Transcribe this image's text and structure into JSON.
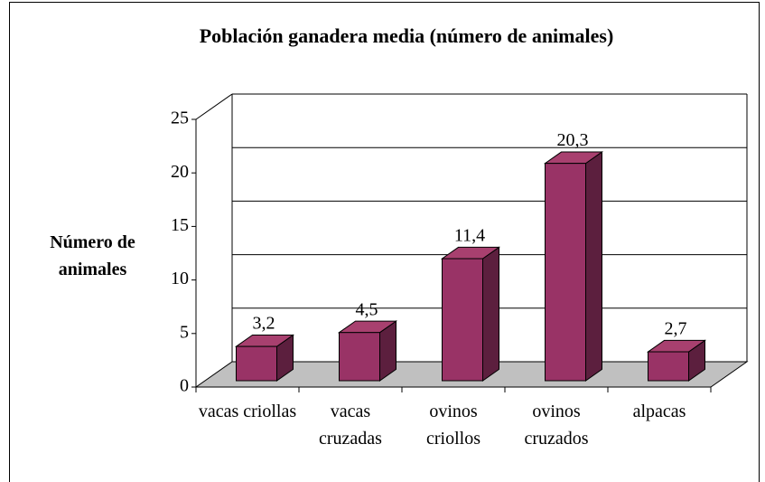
{
  "chart_data": {
    "type": "bar3d",
    "title": "Población ganadera media (número de animales)",
    "y_label": "Número de animales",
    "categories": [
      "vacas criollas",
      "vacas cruzadas",
      "ovinos criollos",
      "ovinos cruzados",
      "alpacas"
    ],
    "values": [
      3.2,
      4.5,
      11.4,
      20.3,
      2.7
    ],
    "value_labels": [
      "3,2",
      "4,5",
      "11,4",
      "20,3",
      "2,7"
    ],
    "color": "#993366",
    "ylim": [
      0,
      25
    ],
    "yticks": [
      0,
      5,
      10,
      15,
      20,
      25
    ],
    "grid": true
  }
}
